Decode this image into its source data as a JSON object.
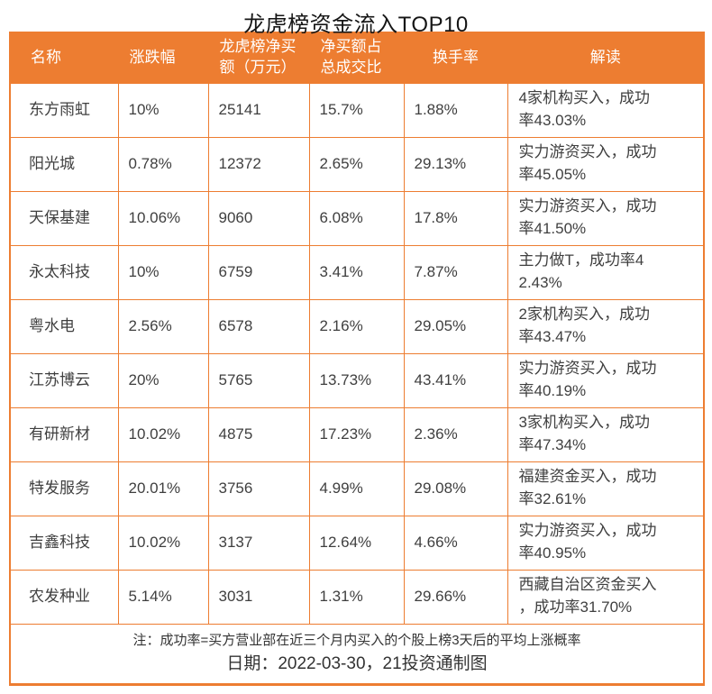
{
  "colors": {
    "accent_orange": "#ED7D31",
    "header_text": "#FFFFFF",
    "body_text": "#3F3F3F"
  },
  "chart_data": {
    "type": "table",
    "title": "龙虎榜资金流入TOP10",
    "columns": [
      "名称",
      "涨跌幅",
      "龙虎榜净买\n额（万元）",
      "净买额占\n总成交比",
      "换手率",
      "解读"
    ],
    "rows": [
      {
        "name": "东方雨虹",
        "change": "10%",
        "net_buy": 25141,
        "buy_ratio": "15.7%",
        "turnover": "1.88%",
        "interpretation": "4家机构买入，成功\n率43.03%"
      },
      {
        "name": "阳光城",
        "change": "0.78%",
        "net_buy": 12372,
        "buy_ratio": "2.65%",
        "turnover": "29.13%",
        "interpretation": "实力游资买入，成功\n率45.05%"
      },
      {
        "name": "天保基建",
        "change": "10.06%",
        "net_buy": 9060,
        "buy_ratio": "6.08%",
        "turnover": "17.8%",
        "interpretation": "实力游资买入，成功\n率41.50%"
      },
      {
        "name": "永太科技",
        "change": "10%",
        "net_buy": 6759,
        "buy_ratio": "3.41%",
        "turnover": "7.87%",
        "interpretation": "主力做T，成功率4\n2.43%"
      },
      {
        "name": "粤水电",
        "change": "2.56%",
        "net_buy": 6578,
        "buy_ratio": "2.16%",
        "turnover": "29.05%",
        "interpretation": "2家机构买入，成功\n率43.47%"
      },
      {
        "name": "江苏博云",
        "change": "20%",
        "net_buy": 5765,
        "buy_ratio": "13.73%",
        "turnover": "43.41%",
        "interpretation": "实力游资买入，成功\n率40.19%"
      },
      {
        "name": "有研新材",
        "change": "10.02%",
        "net_buy": 4875,
        "buy_ratio": "17.23%",
        "turnover": "2.36%",
        "interpretation": "3家机构买入，成功\n率47.34%"
      },
      {
        "name": "特发服务",
        "change": "20.01%",
        "net_buy": 3756,
        "buy_ratio": "4.99%",
        "turnover": "29.08%",
        "interpretation": "福建资金买入，成功\n率32.61%"
      },
      {
        "name": "吉鑫科技",
        "change": "10.02%",
        "net_buy": 3137,
        "buy_ratio": "12.64%",
        "turnover": "4.66%",
        "interpretation": "实力游资买入，成功\n率40.95%"
      },
      {
        "name": "农发种业",
        "change": "5.14%",
        "net_buy": 3031,
        "buy_ratio": "1.31%",
        "turnover": "29.66%",
        "interpretation": "西藏自治区资金买入\n，成功率31.70%"
      }
    ],
    "footnote": "注：成功率=买方营业部在近三个月内买入的个股上榜3天后的平均上涨概率",
    "date_line": "日期：2022-03-30，21投资通制图",
    "legend_position": "none",
    "grid": true
  }
}
